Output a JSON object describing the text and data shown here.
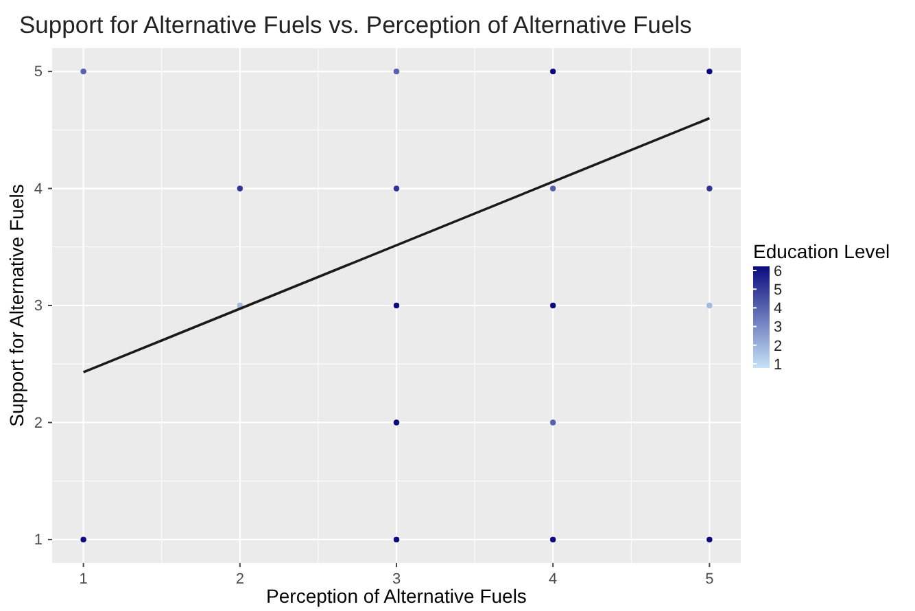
{
  "chart_data": {
    "type": "scatter",
    "title": "Support for Alternative Fuels vs. Perception of Alternative Fuels",
    "xlabel": "Perception of Alternative Fuels",
    "ylabel": "Support for Alternative Fuels",
    "clabel": "Education Level",
    "xlim": [
      0.8,
      5.2
    ],
    "ylim": [
      0.8,
      5.2
    ],
    "xticks": [
      1,
      2,
      3,
      4,
      5
    ],
    "yticks": [
      1,
      2,
      3,
      4,
      5
    ],
    "clim": [
      1,
      6
    ],
    "cticks": [
      1,
      2,
      3,
      4,
      5,
      6
    ],
    "grid": true,
    "series": [
      {
        "x": [
          1,
          1,
          2,
          2,
          3,
          3,
          3,
          3,
          3,
          4,
          4,
          4,
          4,
          4,
          5,
          5,
          5,
          5
        ],
        "values": [
          5,
          1,
          4,
          3,
          5,
          4,
          3,
          2,
          1,
          5,
          4,
          3,
          2,
          1,
          5,
          4,
          3,
          1
        ],
        "cvalues": [
          4,
          6,
          5,
          2,
          4,
          5,
          6,
          6,
          6,
          6,
          4,
          6,
          4,
          6,
          6,
          5,
          2,
          6
        ],
        "colors": [
          "#5661ae",
          "#0b0b7e",
          "#303696",
          "#a1b8df",
          "#5661ae",
          "#303696",
          "#0b0b7e",
          "#0b0b7e",
          "#0b0b7e",
          "#0b0b7e",
          "#5661ae",
          "#0b0b7e",
          "#5661ae",
          "#0b0b7e",
          "#0b0b7e",
          "#303696",
          "#a1b8df",
          "#0b0b7e"
        ],
        "marker": "circle"
      },
      {
        "type": "line",
        "color": "#1a1a1a",
        "x": [
          1,
          5
        ],
        "values": [
          2.43,
          4.6
        ],
        "line_style": "solid"
      }
    ]
  }
}
